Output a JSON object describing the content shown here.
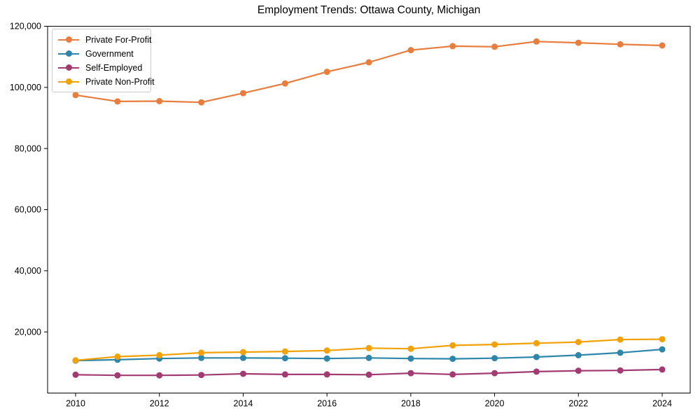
{
  "title": "Employment Trends: Ottawa County, Michigan",
  "chart_data": {
    "type": "line",
    "title": "Employment Trends: Ottawa County, Michigan",
    "xlabel": "",
    "ylabel": "",
    "x": [
      2010,
      2011,
      2012,
      2013,
      2014,
      2015,
      2016,
      2017,
      2018,
      2019,
      2020,
      2021,
      2022,
      2023,
      2024
    ],
    "series": [
      {
        "name": "Private For-Profit",
        "color": "#E87D3E",
        "values": [
          97500,
          95400,
          95500,
          95100,
          98100,
          101300,
          105100,
          108200,
          112200,
          113500,
          113300,
          115000,
          114600,
          114100,
          113700
        ]
      },
      {
        "name": "Government",
        "color": "#2E86AB",
        "values": [
          10600,
          10900,
          11300,
          11500,
          11500,
          11400,
          11300,
          11500,
          11300,
          11200,
          11400,
          11800,
          12400,
          13200,
          14300
        ]
      },
      {
        "name": "Self-Employed",
        "color": "#A23B72",
        "values": [
          6000,
          5800,
          5800,
          5900,
          6300,
          6100,
          6100,
          6000,
          6500,
          6100,
          6500,
          7000,
          7300,
          7400,
          7700
        ]
      },
      {
        "name": "Private Non-Profit",
        "color": "#F1A208",
        "values": [
          10700,
          11900,
          12400,
          13200,
          13400,
          13600,
          13900,
          14700,
          14500,
          15600,
          15900,
          16300,
          16700,
          17500,
          17600
        ]
      }
    ],
    "xlim": [
      2009.3,
      2024.7
    ],
    "ylim": [
      0,
      120000
    ],
    "xticks": [
      2010,
      2012,
      2014,
      2016,
      2018,
      2020,
      2022,
      2024
    ],
    "xtick_labels": [
      "2010",
      "2012",
      "2014",
      "2016",
      "2018",
      "2020",
      "2022",
      "2024"
    ],
    "yticks": [
      20000,
      40000,
      60000,
      80000,
      100000,
      120000
    ],
    "ytick_labels": [
      "20,000",
      "40,000",
      "60,000",
      "80,000",
      "100,000",
      "120,000"
    ],
    "grid": false,
    "legend_position": "upper left",
    "marker": "circle",
    "axis_color": "#000000",
    "background_color": "#ffffff"
  }
}
